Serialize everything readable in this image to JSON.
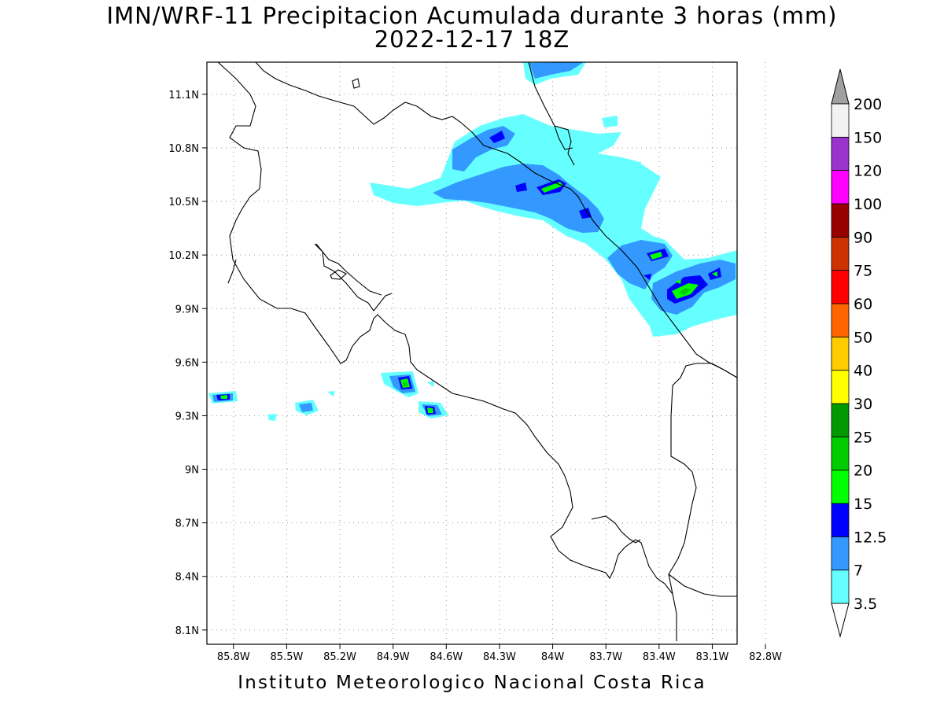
{
  "title": {
    "line1": "IMN/WRF-11 Precipitacion Acumulada durante 3 horas (mm)",
    "line2": "2022-12-17 18Z"
  },
  "footer": "Instituto Meteorologico Nacional Costa Rica",
  "map": {
    "lat_labels": [
      "11.1N",
      "10.8N",
      "10.5N",
      "10.2N",
      "9.9N",
      "9.6N",
      "9.3N",
      "9N",
      "8.7N",
      "8.4N",
      "8.1N"
    ],
    "lon_labels": [
      "85.8W",
      "85.5W",
      "85.2W",
      "84.9W",
      "84.6W",
      "84.3W",
      "84W",
      "83.7W",
      "83.4W",
      "83.1W",
      "82.8W"
    ],
    "lat_range": [
      8.02,
      11.28
    ],
    "lon_range": [
      85.95,
      82.96
    ],
    "grid": "dotted"
  },
  "colorbar": {
    "levels": [
      "3.5",
      "7",
      "12.5",
      "15",
      "20",
      "25",
      "30",
      "40",
      "50",
      "60",
      "75",
      "90",
      "100",
      "120",
      "150",
      "200"
    ],
    "colors": [
      "#66ffff",
      "#3399ff",
      "#0000ff",
      "#00ff00",
      "#00cc00",
      "#009900",
      "#ffff00",
      "#ffcc00",
      "#ff6600",
      "#ff0000",
      "#cc3300",
      "#990000",
      "#ff00ff",
      "#9933cc",
      "#f2f2f2"
    ],
    "over_color": "#a0a0a0",
    "under_color": "#ffffff"
  }
}
